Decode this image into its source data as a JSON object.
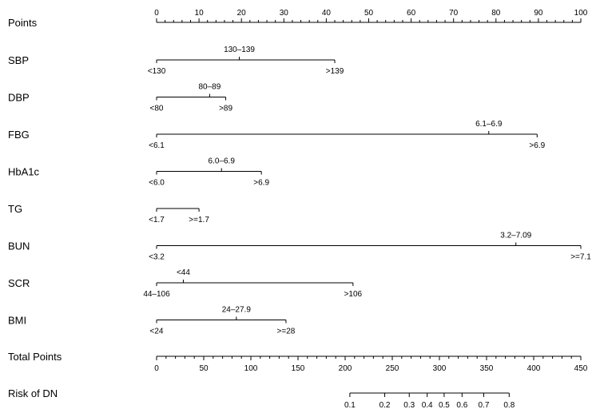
{
  "chart_data": {
    "type": "nomogram",
    "title": "",
    "points_axis": {
      "label": "Points",
      "range": [
        0,
        100
      ],
      "major_ticks": [
        0,
        10,
        20,
        30,
        40,
        50,
        60,
        70,
        80,
        90,
        100
      ],
      "minor_step": 2
    },
    "variables": [
      {
        "name": "SBP",
        "levels": [
          {
            "label": "<130",
            "points": 0
          },
          {
            "label": "130–139",
            "points": 19.5
          },
          {
            "label": ">139",
            "points": 42
          }
        ]
      },
      {
        "name": "DBP",
        "levels": [
          {
            "label": "<80",
            "points": 0
          },
          {
            "label": "80–89",
            "points": 12.5
          },
          {
            "label": ">89",
            "points": 16.3
          }
        ]
      },
      {
        "name": "FBG",
        "levels": [
          {
            "label": "<6.1",
            "points": 0
          },
          {
            "label": "6.1–6.9",
            "points": 78.3
          },
          {
            "label": ">6.9",
            "points": 89.7
          }
        ]
      },
      {
        "name": "HbA1c",
        "levels": [
          {
            "label": "<6.0",
            "points": 0
          },
          {
            "label": "6.0–6.9",
            "points": 15.3
          },
          {
            "label": ">6.9",
            "points": 24.7
          }
        ]
      },
      {
        "name": "TG",
        "levels": [
          {
            "label": "<1.7",
            "points": 0
          },
          {
            "label": ">=1.7",
            "points": 10
          }
        ]
      },
      {
        "name": "BUN",
        "levels": [
          {
            "label": "<3.2",
            "points": 0
          },
          {
            "label": "3.2–7.09",
            "points": 84.7
          },
          {
            "label": ">=7.1",
            "points": 100
          }
        ]
      },
      {
        "name": "SCR",
        "levels": [
          {
            "label": "44–106",
            "points": 0
          },
          {
            "label": "<44",
            "points": 6.3
          },
          {
            "label": ">106",
            "points": 46.3
          }
        ]
      },
      {
        "name": "BMI",
        "levels": [
          {
            "label": "<24",
            "points": 0
          },
          {
            "label": "24–27.9",
            "points": 18.8
          },
          {
            "label": ">=28",
            "points": 30.5
          }
        ]
      }
    ],
    "total_points_axis": {
      "label": "Total Points",
      "range": [
        0,
        450
      ],
      "major_ticks": [
        0,
        50,
        100,
        150,
        200,
        250,
        300,
        350,
        400,
        450
      ],
      "minor_step": 10
    },
    "risk_axis": {
      "label": "Risk of DN",
      "ticks": [
        {
          "label": "0.1",
          "total_points": 205
        },
        {
          "label": "0.2",
          "total_points": 242
        },
        {
          "label": "0.3",
          "total_points": 268
        },
        {
          "label": "0.4",
          "total_points": 287
        },
        {
          "label": "0.5",
          "total_points": 305
        },
        {
          "label": "0.6",
          "total_points": 324
        },
        {
          "label": "0.7",
          "total_points": 347
        },
        {
          "label": "0.8",
          "total_points": 374
        }
      ]
    },
    "grid": false,
    "legend": "none"
  }
}
